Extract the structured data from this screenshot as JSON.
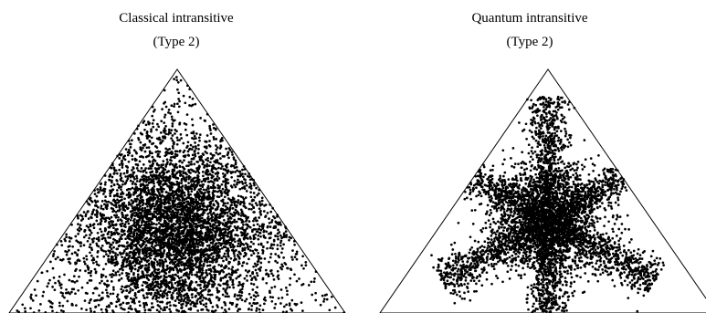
{
  "chart_data": [
    {
      "type": "scatter",
      "title": "Classical intransitive",
      "subtitle": "(Type 2)",
      "distribution": "central-blob",
      "point_count": 5200,
      "grid": false,
      "legend": "none",
      "point_color": "#000000"
    },
    {
      "type": "scatter",
      "title": "Quantum intransitive",
      "subtitle": "(Type 2)",
      "distribution": "six-point-star",
      "point_count": 5200,
      "grid": false,
      "legend": "none",
      "point_color": "#000000"
    }
  ]
}
